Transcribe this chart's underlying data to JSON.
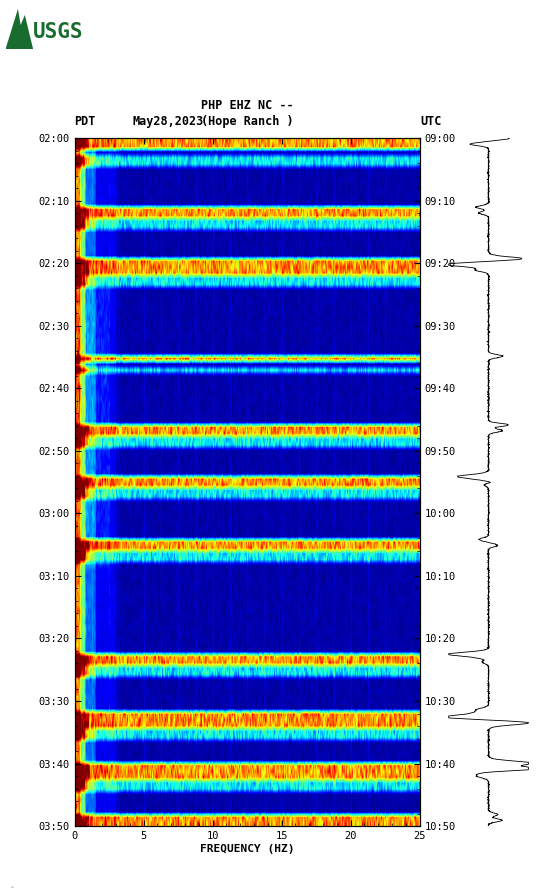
{
  "title_line1": "PHP EHZ NC --",
  "title_line2": "(Hope Ranch )",
  "label_left": "PDT",
  "label_date": "May28,2023",
  "label_right": "UTC",
  "xlabel": "FREQUENCY (HZ)",
  "freq_min": 0,
  "freq_max": 25,
  "pdt_ticks": [
    "02:00",
    "02:10",
    "02:20",
    "02:30",
    "02:40",
    "02:50",
    "03:00",
    "03:10",
    "03:20",
    "03:30",
    "03:40",
    "03:50"
  ],
  "utc_ticks": [
    "09:00",
    "09:10",
    "09:20",
    "09:30",
    "09:40",
    "09:50",
    "10:00",
    "10:10",
    "10:20",
    "10:30",
    "10:40",
    "10:50"
  ],
  "n_time": 120,
  "n_freq": 500,
  "background_color": "#ffffff",
  "usgs_green": "#1a6b2e",
  "spectrogram_cmap": "jet",
  "fig_width": 5.52,
  "fig_height": 8.93,
  "dpi": 100,
  "bright_rows": [
    0,
    1,
    12,
    13,
    21,
    22,
    23,
    38,
    50,
    51,
    59,
    60,
    70,
    71,
    90,
    91,
    100,
    101,
    102,
    109,
    110,
    111,
    118,
    119
  ],
  "medium_rows": [
    3,
    4,
    14,
    15,
    24,
    25,
    40,
    52,
    53,
    61,
    62,
    72,
    73,
    92,
    93,
    103,
    104,
    112,
    113
  ],
  "vert_freq_cols": [
    12,
    25,
    50,
    62,
    100,
    125,
    150,
    175,
    200,
    225,
    250,
    275,
    300,
    325,
    350,
    375,
    400,
    425,
    450
  ],
  "seis_events": [
    0,
    1,
    12,
    13,
    21,
    22,
    23,
    38,
    50,
    51,
    59,
    60,
    70,
    71,
    90,
    91,
    100,
    101,
    102,
    109,
    110,
    111,
    118,
    119
  ]
}
